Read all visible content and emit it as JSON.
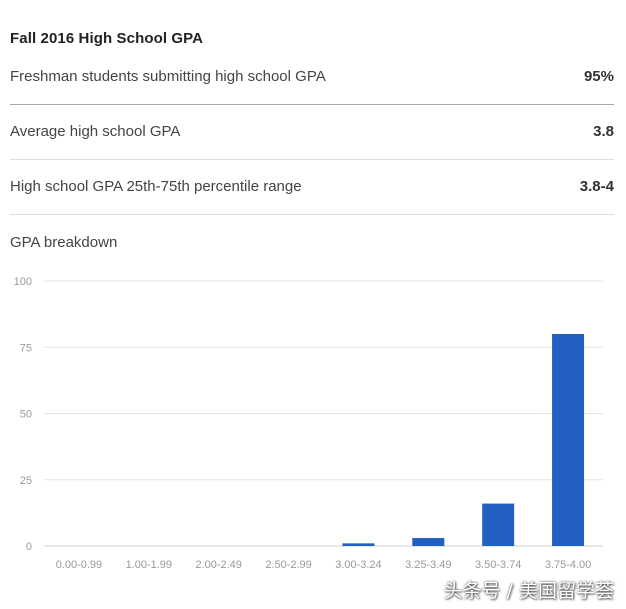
{
  "title": "Fall 2016 High School GPA",
  "stats": [
    {
      "label": "Freshman students submitting high school GPA",
      "value": "95%"
    },
    {
      "label": "Average high school GPA",
      "value": "3.8"
    },
    {
      "label": "High school GPA 25th-75th percentile range",
      "value": "3.8-4"
    }
  ],
  "breakdown_label": "GPA breakdown",
  "watermark": "头条号 / 美国留学荟",
  "colors": {
    "bar": "#2160c0",
    "grid": "#e3e3e3",
    "tick_text": "#999999"
  },
  "chart_data": {
    "type": "bar",
    "title": "",
    "xlabel": "",
    "ylabel": "",
    "categories": [
      "0.00-0.99",
      "1.00-1.99",
      "2.00-2.49",
      "2.50-2.99",
      "3.00-3.24",
      "3.25-3.49",
      "3.50-3.74",
      "3.75-4.00"
    ],
    "values": [
      0,
      0,
      0,
      0,
      1,
      3,
      16,
      80
    ],
    "ylim": [
      0,
      100
    ],
    "yticks": [
      0,
      25,
      50,
      75,
      100
    ],
    "grid": true,
    "legend": "none"
  }
}
